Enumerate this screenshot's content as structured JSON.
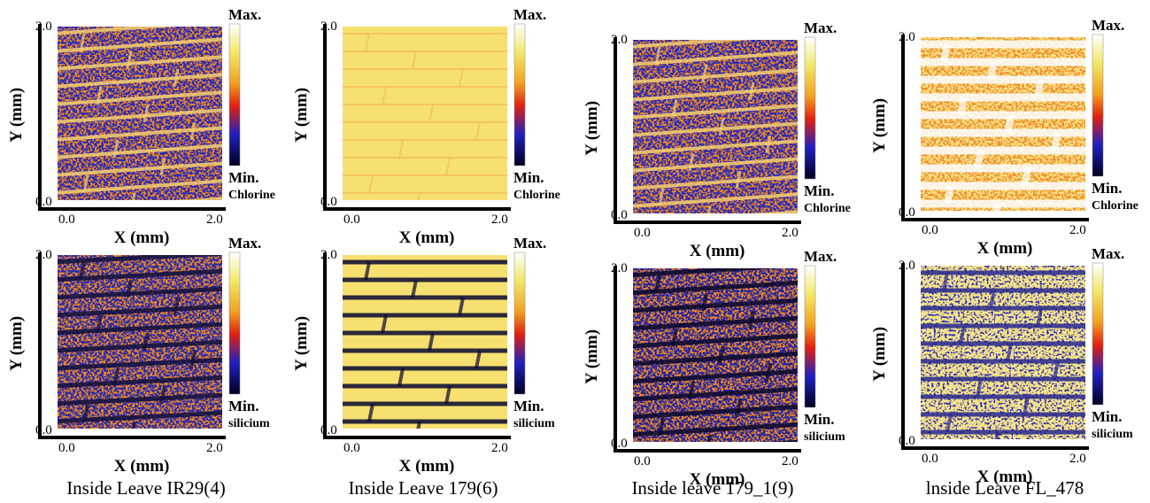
{
  "panels": [
    {
      "x_label": "X (mm)",
      "y_label": "Y (mm)",
      "x_ticks": [
        "0.0",
        "2.0"
      ],
      "y_ticks": [
        "0.0",
        "2.0"
      ],
      "colorbar": {
        "max": "Max.",
        "min": "Min.",
        "element": "Chlorine"
      }
    },
    {
      "x_label": "X (mm)",
      "y_label": "Y (mm)",
      "x_ticks": [
        "0.0",
        "2.0"
      ],
      "y_ticks": [
        "0.0",
        "2.0"
      ],
      "colorbar": {
        "max": "Max.",
        "min": "Min.",
        "element": "Chlorine"
      }
    },
    {
      "x_label": "X (mm)",
      "y_label": "Y (mm)",
      "x_ticks": [
        "0.0",
        "2.0"
      ],
      "y_ticks": [
        "0.0",
        "2.0"
      ],
      "colorbar": {
        "max": "Max.",
        "min": "Min.",
        "element": "Chlorine"
      }
    },
    {
      "x_label": "X (mm)",
      "y_label": "Y (mm)",
      "x_ticks": [
        "0.0",
        "2.0"
      ],
      "y_ticks": [
        "0.0",
        "2.0"
      ],
      "colorbar": {
        "max": "Max.",
        "min": "Min.",
        "element": "Chlorine"
      }
    },
    {
      "x_label": "X (mm)",
      "y_label": "Y (mm)",
      "x_ticks": [
        "0.0",
        "2.0"
      ],
      "y_ticks": [
        "0.0",
        "2.0"
      ],
      "colorbar": {
        "max": "Max.",
        "min": "Min.",
        "element": "silicium"
      }
    },
    {
      "x_label": "X (mm)",
      "y_label": "Y (mm)",
      "x_ticks": [
        "0.0",
        "2.0"
      ],
      "y_ticks": [
        "0.0",
        "2.0"
      ],
      "colorbar": {
        "max": "Max.",
        "min": "Min.",
        "element": "silicium"
      }
    },
    {
      "x_label": "X (mm)",
      "y_label": "Y (mm)",
      "x_ticks": [
        "0.0",
        "2.0"
      ],
      "y_ticks": [
        "0.0",
        "2.0"
      ],
      "colorbar": {
        "max": "Max.",
        "min": "Min.",
        "element": "silicium"
      }
    },
    {
      "x_label": "X (mm)",
      "y_label": "Y (mm)",
      "x_ticks": [
        "0.0",
        "2.0"
      ],
      "y_ticks": [
        "0.0",
        "2.0"
      ],
      "colorbar": {
        "max": "Max.",
        "min": "Min.",
        "element": "silicium"
      }
    }
  ],
  "captions": [
    "Inside Leave IR29(4)",
    "Inside Leave 179(6)",
    "Inside leave 179_1(9)",
    "lnside Leave FL_478"
  ]
}
